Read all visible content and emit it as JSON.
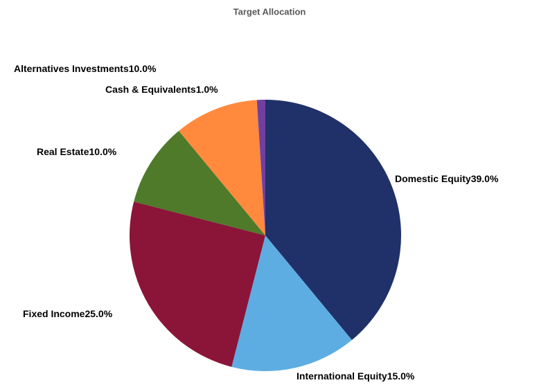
{
  "chart_data": {
    "type": "pie",
    "title": "Target Allocation",
    "categories": [
      "Domestic Equity",
      "International Equity",
      "Fixed Income",
      "Real Estate",
      "Alternatives Investments",
      "Cash & Equivalents"
    ],
    "values": [
      39,
      15,
      25,
      10,
      10,
      1
    ],
    "value_labels": [
      "39.0%",
      "15.0%",
      "25.0%",
      "10.0%",
      "10.0%",
      "1.0%"
    ],
    "colors": [
      "#203069",
      "#5dade2",
      "#8b1538",
      "#4e7a2a",
      "#ff8a3d",
      "#7040a0"
    ]
  }
}
